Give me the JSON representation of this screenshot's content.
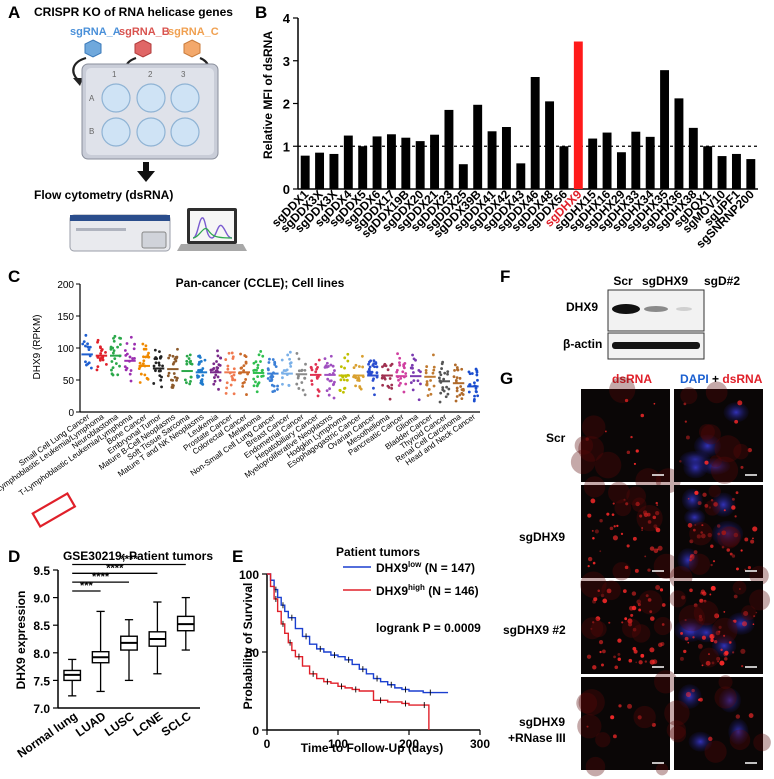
{
  "panels": {
    "A": {
      "letter": "A",
      "title": "CRISPR KO of RNA helicase genes",
      "sgrna": [
        {
          "label": "sgRNA_A",
          "color": "#4a90d9"
        },
        {
          "label": "sgRNA_B",
          "color": "#d9534f"
        },
        {
          "label": "sgRNA_C",
          "color": "#f0a050"
        }
      ],
      "well_numbers": [
        "1",
        "2",
        "3"
      ],
      "row_letters": [
        "A",
        "B"
      ],
      "step_label": "Flow cytometry (dsRNA)"
    },
    "C": {
      "letter": "C",
      "title": "Pan-cancer (CCLE); Cell lines"
    },
    "D": {
      "letter": "D",
      "title": "GSE30219; Patient tumors"
    },
    "E": {
      "letter": "E",
      "title": "Patient tumors",
      "legend": [
        {
          "base": "DHX9",
          "sup": "low",
          "tail": " (N = 147)",
          "color": "#1a3fcf"
        },
        {
          "base": "DHX9",
          "sup": "high",
          "tail": " (N = 146)",
          "color": "#e0202a"
        }
      ],
      "stat": "logrank P = 0.0009"
    },
    "F": {
      "letter": "F",
      "lanes": [
        "Scr",
        "sgDHX9",
        "sgD#2"
      ],
      "rows": [
        "DHX9",
        "β-actin"
      ]
    },
    "G": {
      "letter": "G",
      "col_titles": [
        {
          "parts": [
            {
              "t": "dsRNA",
              "c": "#e0202a"
            }
          ]
        },
        {
          "parts": [
            {
              "t": "DAPI",
              "c": "#1a5fd0"
            },
            {
              "t": " + ",
              "c": "#000000"
            },
            {
              "t": "dsRNA",
              "c": "#e0202a"
            }
          ]
        }
      ],
      "row_labels": [
        [
          "Scr"
        ],
        [
          "sgDHX9"
        ],
        [
          "sgDHX9 #2"
        ],
        [
          "sgDHX9",
          "+RNase III"
        ]
      ]
    }
  },
  "chart_data": [
    {
      "panel": "B",
      "type": "bar",
      "ylabel": "Relative MFI of dsRNA",
      "ylim": [
        0,
        4
      ],
      "yticks": [
        0,
        1,
        2,
        3,
        4
      ],
      "reference_line": 1,
      "highlight": {
        "category": "sgDHX9",
        "color": "#ff1a1a"
      },
      "categories": [
        "sgDDX1",
        "sgDDX3X",
        "sgDDX3X",
        "sgDDX4",
        "sgDDX5",
        "sgDDX6",
        "sgDDX17",
        "sgDDX19B",
        "sgDDX20",
        "sgDDX21",
        "sgDDX23",
        "sgDDX25",
        "sgDDX39B",
        "sgDDX41",
        "sgDDX42",
        "sgDDX43",
        "sgDDX46",
        "sgDDX48",
        "sgDDX56",
        "sgDHX9",
        "sgDHX15",
        "sgDHX16",
        "sgDHX29",
        "sgDHX33",
        "sgDHX34",
        "sgDHX35",
        "sgDHX36",
        "sgDHX38",
        "sgDQX1",
        "sgMOV10",
        "sgUPF1",
        "sgSNRNP200"
      ],
      "values": [
        0.78,
        0.85,
        0.82,
        1.25,
        1.0,
        1.23,
        1.28,
        1.2,
        1.12,
        1.27,
        1.85,
        0.58,
        1.97,
        1.35,
        1.45,
        0.6,
        2.62,
        2.05,
        1.0,
        3.45,
        1.18,
        1.32,
        0.86,
        1.34,
        1.22,
        2.78,
        2.12,
        1.43,
        1.0,
        0.77,
        0.82,
        0.7
      ]
    },
    {
      "panel": "C",
      "type": "scatter",
      "ylabel": "DHX9 (RPKM)",
      "ylim": [
        0,
        200
      ],
      "yticks": [
        0,
        50,
        100,
        150,
        200
      ],
      "categories": [
        "Small Cell Lung Cancer",
        "B-Lymphoblastic Leukemia/Lymphoma",
        "Neuroblastoma",
        "T-Lymphoblastic Leukemia/Lymphoma",
        "Bone Cancer",
        "Embryonal Tumor",
        "Mature B-Cell Neoplasms",
        "Soft Tissue Sarcoma",
        "Mature T and NK Neoplasms",
        "Leukemia",
        "Prostate Cancer",
        "Colorectal Cancer",
        "Melanoma",
        "Non-Small Cell Lung Cancer",
        "Breast Cancer",
        "Endometrial Cancer",
        "Hepatobiliary Cancer",
        "Myeloproliferative Neoplasms",
        "Hodgkin Lymphoma",
        "Esophagogastric Cancer",
        "Ovarian Cancer",
        "Mesothelioma",
        "Pancreatic Cancer",
        "Glioma",
        "Bladder Cancer",
        "Thyroid Cancer",
        "Renal Cell Carcinoma",
        "Head and Neck Cancer"
      ],
      "medians": [
        90,
        88,
        88,
        80,
        72,
        68,
        67,
        64,
        62,
        62,
        62,
        62,
        61,
        60,
        60,
        59,
        58,
        58,
        57,
        57,
        57,
        57,
        56,
        56,
        55,
        48,
        45,
        40
      ],
      "highlight": "Small Cell Lung Cancer"
    },
    {
      "panel": "D",
      "type": "box",
      "ylabel": "DHX9 expression",
      "ylim": [
        7.0,
        9.5
      ],
      "yticks": [
        "7.0",
        "7.5",
        "8.0",
        "8.5",
        "9.0",
        "9.5"
      ],
      "categories": [
        "Normal lung",
        "LUAD",
        "LUSC",
        "LCNE",
        "SCLC"
      ],
      "boxes": [
        {
          "min": 7.22,
          "q1": 7.5,
          "median": 7.6,
          "q3": 7.68,
          "max": 7.88
        },
        {
          "min": 7.3,
          "q1": 7.82,
          "median": 7.92,
          "q3": 8.02,
          "max": 8.75
        },
        {
          "min": 7.5,
          "q1": 8.05,
          "median": 8.18,
          "q3": 8.3,
          "max": 8.6
        },
        {
          "min": 7.62,
          "q1": 8.12,
          "median": 8.25,
          "q3": 8.38,
          "max": 8.92
        },
        {
          "min": 8.05,
          "q1": 8.4,
          "median": 8.52,
          "q3": 8.66,
          "max": 9.0
        }
      ],
      "significance": [
        {
          "label": "***",
          "from": "Normal lung",
          "to": "LUAD"
        },
        {
          "label": "****",
          "from": "Normal lung",
          "to": "LUSC"
        },
        {
          "label": "****",
          "from": "Normal lung",
          "to": "LCNE"
        },
        {
          "label": "****",
          "from": "Normal lung",
          "to": "SCLC"
        }
      ]
    },
    {
      "panel": "E",
      "type": "line",
      "xlabel": "Time to Follow-Up (days)",
      "ylabel": "Probability of Survival",
      "xlim": [
        0,
        300
      ],
      "ylim": [
        0,
        100
      ],
      "xticks": [
        0,
        100,
        200,
        300
      ],
      "yticks": [
        0,
        50,
        100
      ],
      "series": [
        {
          "name": "DHX9low",
          "color": "#1a3fcf",
          "x": [
            0,
            5,
            10,
            15,
            20,
            25,
            30,
            40,
            50,
            60,
            70,
            80,
            90,
            100,
            110,
            120,
            130,
            140,
            150,
            160,
            170,
            180,
            190,
            200,
            220,
            240,
            255
          ],
          "y": [
            100,
            96,
            90,
            85,
            80,
            76,
            72,
            65,
            60,
            55,
            52,
            50,
            48,
            47,
            45,
            42,
            39,
            36,
            33,
            31,
            29,
            27,
            26,
            25,
            24,
            24,
            24
          ]
        },
        {
          "name": "DHX9high",
          "color": "#e0202a",
          "x": [
            0,
            5,
            10,
            15,
            20,
            25,
            30,
            35,
            40,
            50,
            60,
            70,
            80,
            90,
            100,
            110,
            120,
            130,
            150,
            170,
            190,
            200,
            215,
            228
          ],
          "y": [
            100,
            92,
            84,
            76,
            68,
            62,
            56,
            51,
            47,
            41,
            36,
            33,
            31,
            30,
            28,
            27,
            26,
            25,
            19,
            18,
            17,
            16,
            16,
            0
          ]
        }
      ]
    }
  ]
}
